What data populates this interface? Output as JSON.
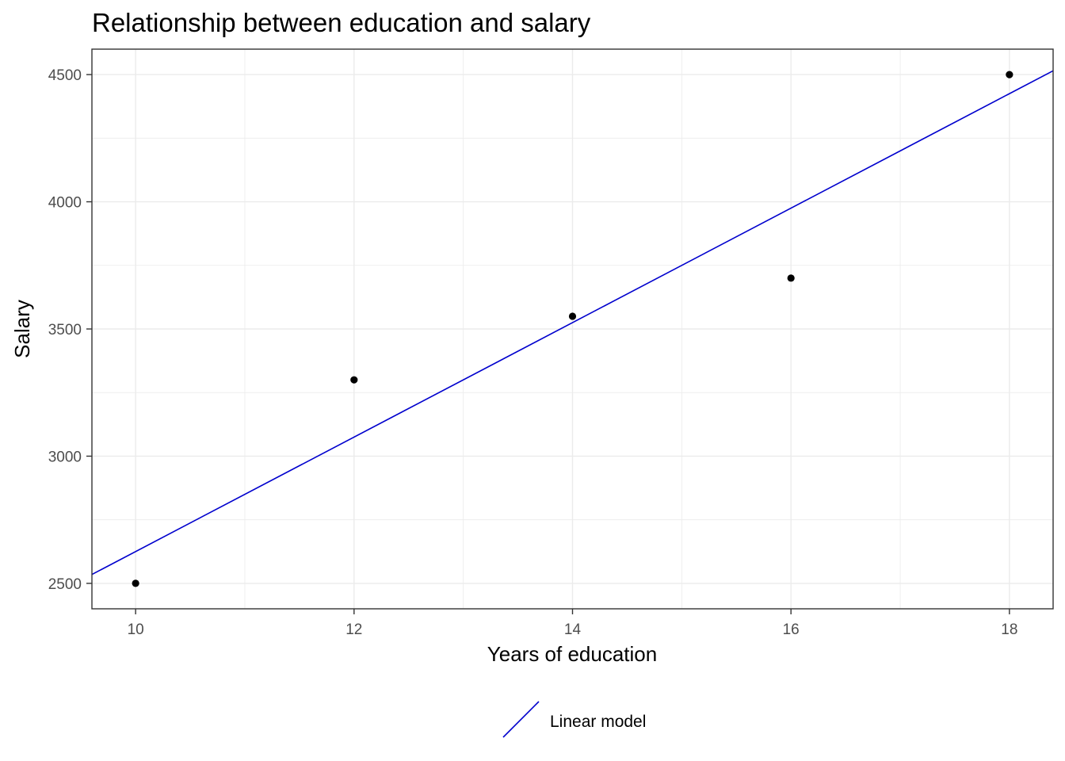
{
  "chart_data": {
    "type": "scatter",
    "title": "Relationship between education and salary",
    "xlabel": "Years of education",
    "ylabel": "Salary",
    "xlim": [
      9.6,
      18.4
    ],
    "ylim": [
      2400,
      4600
    ],
    "x_ticks": [
      10,
      12,
      14,
      16,
      18
    ],
    "y_ticks": [
      2500,
      3000,
      3500,
      4000,
      4500
    ],
    "x_minor_ticks": [
      11,
      13,
      15,
      17
    ],
    "y_minor_ticks": [
      2750,
      3250,
      3750,
      4250
    ],
    "grid": true,
    "points": [
      {
        "x": 10,
        "y": 2500
      },
      {
        "x": 12,
        "y": 3300
      },
      {
        "x": 14,
        "y": 3550
      },
      {
        "x": 16,
        "y": 3700
      },
      {
        "x": 18,
        "y": 4500
      }
    ],
    "regression_line": {
      "name": "Linear model",
      "intercept": 375,
      "slope": 225,
      "color": "#0000cd"
    },
    "point_color": "#000000",
    "legend": {
      "position": "bottom",
      "entries": [
        "Linear model"
      ]
    }
  }
}
